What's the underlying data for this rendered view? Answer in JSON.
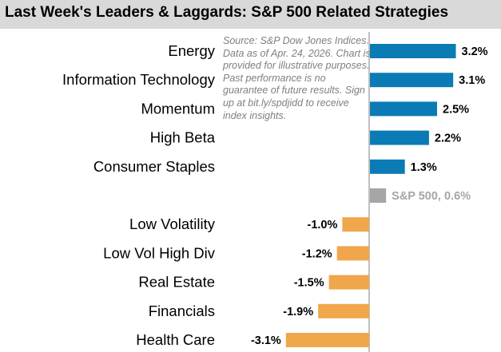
{
  "title": "Last Week's Leaders & Laggards: S&P 500 Related Strategies",
  "source_note": "Source: S&P Dow Jones Indices. Data as of Apr. 24, 2026. Chart is provided for illustrative purposes. Past performance is no guarantee of future results. Sign up at bit.ly/spdjidd to receive index insights.",
  "colors": {
    "leader": "#0a7bb5",
    "benchmark": "#a6a6a6",
    "laggard": "#f0a64b",
    "axis": "#7f7f7f"
  },
  "chart_data": {
    "type": "bar",
    "orientation": "horizontal",
    "title": "Last Week's Leaders & Laggards: S&P 500 Related Strategies",
    "unit": "%",
    "categories": [
      "Energy",
      "Information Technology",
      "Momentum",
      "High Beta",
      "Consumer Staples",
      "",
      "Low Volatility",
      "Low Vol High Div",
      "Real Estate",
      "Financials",
      "Health Care"
    ],
    "values": [
      3.2,
      3.1,
      2.5,
      2.2,
      1.3,
      0.6,
      -1.0,
      -1.2,
      -1.5,
      -1.9,
      -3.1
    ],
    "data_labels": [
      "3.2%",
      "3.1%",
      "2.5%",
      "2.2%",
      "1.3%",
      "S&P 500, 0.6%",
      "-1.0%",
      "-1.2%",
      "-1.5%",
      "-1.9%",
      "-3.1%"
    ],
    "groups": [
      "leader",
      "leader",
      "leader",
      "leader",
      "leader",
      "benchmark",
      "laggard",
      "laggard",
      "laggard",
      "laggard",
      "laggard"
    ],
    "grid": false,
    "legend": "none"
  }
}
